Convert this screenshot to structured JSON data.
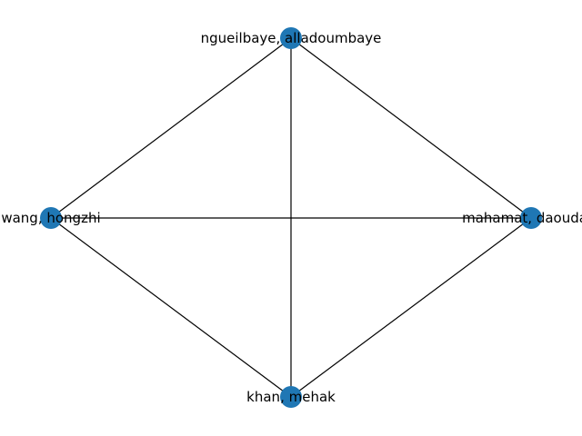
{
  "graph": {
    "node_color": "#1f77b4",
    "edge_color": "#000000",
    "nodes": [
      {
        "id": "n0",
        "label": "ngueilbaye, alladoumbaye"
      },
      {
        "id": "n1",
        "label": "wang, hongzhi"
      },
      {
        "id": "n2",
        "label": "mahamat, daouda a"
      },
      {
        "id": "n3",
        "label": "khan, mehak"
      }
    ],
    "edges": [
      [
        "n0",
        "n1"
      ],
      [
        "n0",
        "n2"
      ],
      [
        "n0",
        "n3"
      ],
      [
        "n1",
        "n2"
      ],
      [
        "n1",
        "n3"
      ],
      [
        "n2",
        "n3"
      ]
    ]
  }
}
